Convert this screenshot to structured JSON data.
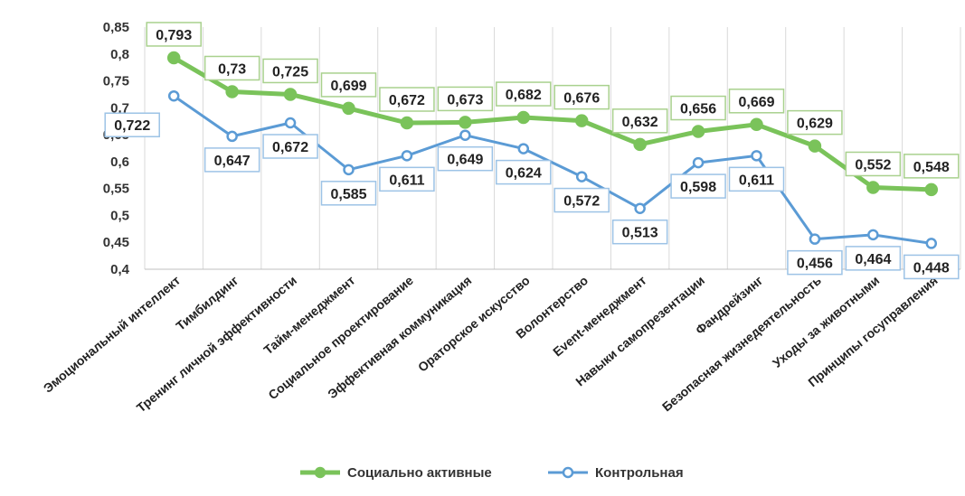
{
  "chart_data": {
    "type": "line",
    "categories": [
      "Эмоциональный интеллект",
      "Тимбилдинг",
      "Тренинг личной эффективности",
      "Тайм-менеджмент",
      "Социальное проектирование",
      "Эффективная коммуникация",
      "Ораторское искусство",
      "Волонтерство",
      "Event-менеджмент",
      "Навыки самопрезентации",
      "Фандрейзинг",
      "Безопасная жизнедеятельность",
      "Уходы за животными",
      "Принципы госуправления"
    ],
    "series": [
      {
        "name": "Социально активные",
        "color": "#7ac35a",
        "values": [
          0.793,
          0.73,
          0.725,
          0.699,
          0.672,
          0.673,
          0.682,
          0.676,
          0.632,
          0.656,
          0.669,
          0.629,
          0.552,
          0.548
        ],
        "labels": [
          "0,793",
          "0,73",
          "0,725",
          "0,699",
          "0,672",
          "0,673",
          "0,682",
          "0,676",
          "0,632",
          "0,656",
          "0,669",
          "0,629",
          "0,552",
          "0,548"
        ]
      },
      {
        "name": "Контрольная",
        "color": "#5b9bd5",
        "values": [
          0.722,
          0.647,
          0.672,
          0.585,
          0.611,
          0.649,
          0.624,
          0.572,
          0.513,
          0.598,
          0.611,
          0.456,
          0.464,
          0.448
        ],
        "labels": [
          "0,722",
          "0,647",
          "0,672",
          "0,585",
          "0,611",
          "0,649",
          "0,624",
          "0,572",
          "0,513",
          "0,598",
          "0,611",
          "0,456",
          "0,464",
          "0,448"
        ]
      }
    ],
    "ylim": [
      0.4,
      0.85
    ],
    "yticks": [
      0.4,
      0.45,
      0.5,
      0.55,
      0.6,
      0.65,
      0.7,
      0.75,
      0.8,
      0.85
    ],
    "ytick_labels": [
      "0,4",
      "0,45",
      "0,5",
      "0,55",
      "0,6",
      "0,65",
      "0,7",
      "0,75",
      "0,8",
      "0,85"
    ],
    "grid": "vertical",
    "legend_position": "bottom",
    "title": "",
    "xlabel": "",
    "ylabel": ""
  }
}
